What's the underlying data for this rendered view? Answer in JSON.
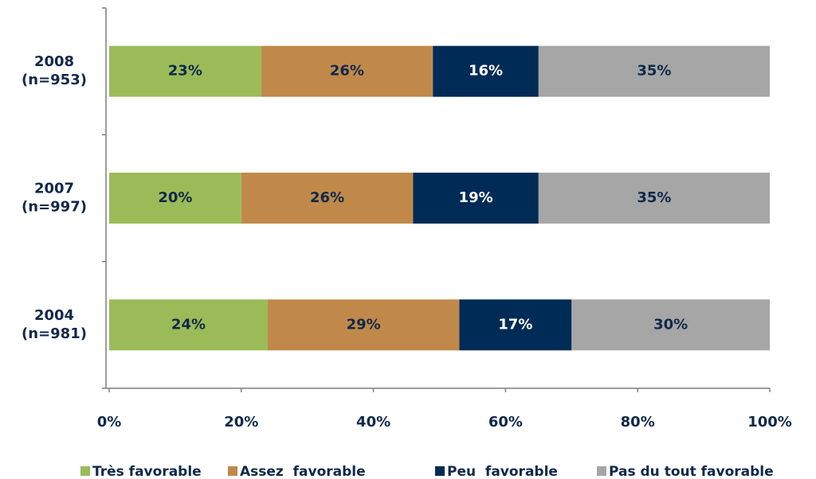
{
  "chart_data": {
    "type": "stacked_bar_horizontal",
    "categories": [
      [
        "2008",
        "(n=953)"
      ],
      [
        "2007",
        "(n=997)"
      ],
      [
        "2004",
        "(n=981)"
      ]
    ],
    "series": [
      {
        "name": "Très favorable",
        "color": "#9bbb59",
        "values": [
          23,
          20,
          24
        ],
        "value_labels": [
          "23%",
          "20%",
          "24%"
        ]
      },
      {
        "name": "Assez  favorable",
        "color": "#c0894a",
        "values": [
          26,
          26,
          29
        ],
        "value_labels": [
          "26%",
          "26%",
          "29%"
        ]
      },
      {
        "name": "Peu  favorable",
        "color": "#002b56",
        "values": [
          16,
          19,
          17
        ],
        "value_labels": [
          "16%",
          "19%",
          "17%"
        ]
      },
      {
        "name": "Pas du tout favorable",
        "color": "#a6a6a6",
        "values": [
          35,
          35,
          30
        ],
        "value_labels": [
          "35%",
          "35%",
          "30%"
        ]
      }
    ],
    "xlim": [
      0,
      100
    ],
    "xticks": [
      {
        "value": 0,
        "label": "0%"
      },
      {
        "value": 20,
        "label": "20%"
      },
      {
        "value": 40,
        "label": "40%"
      },
      {
        "value": 60,
        "label": "60%"
      },
      {
        "value": 80,
        "label": "80%"
      },
      {
        "value": 100,
        "label": "100%"
      }
    ],
    "legend": "bottom"
  }
}
